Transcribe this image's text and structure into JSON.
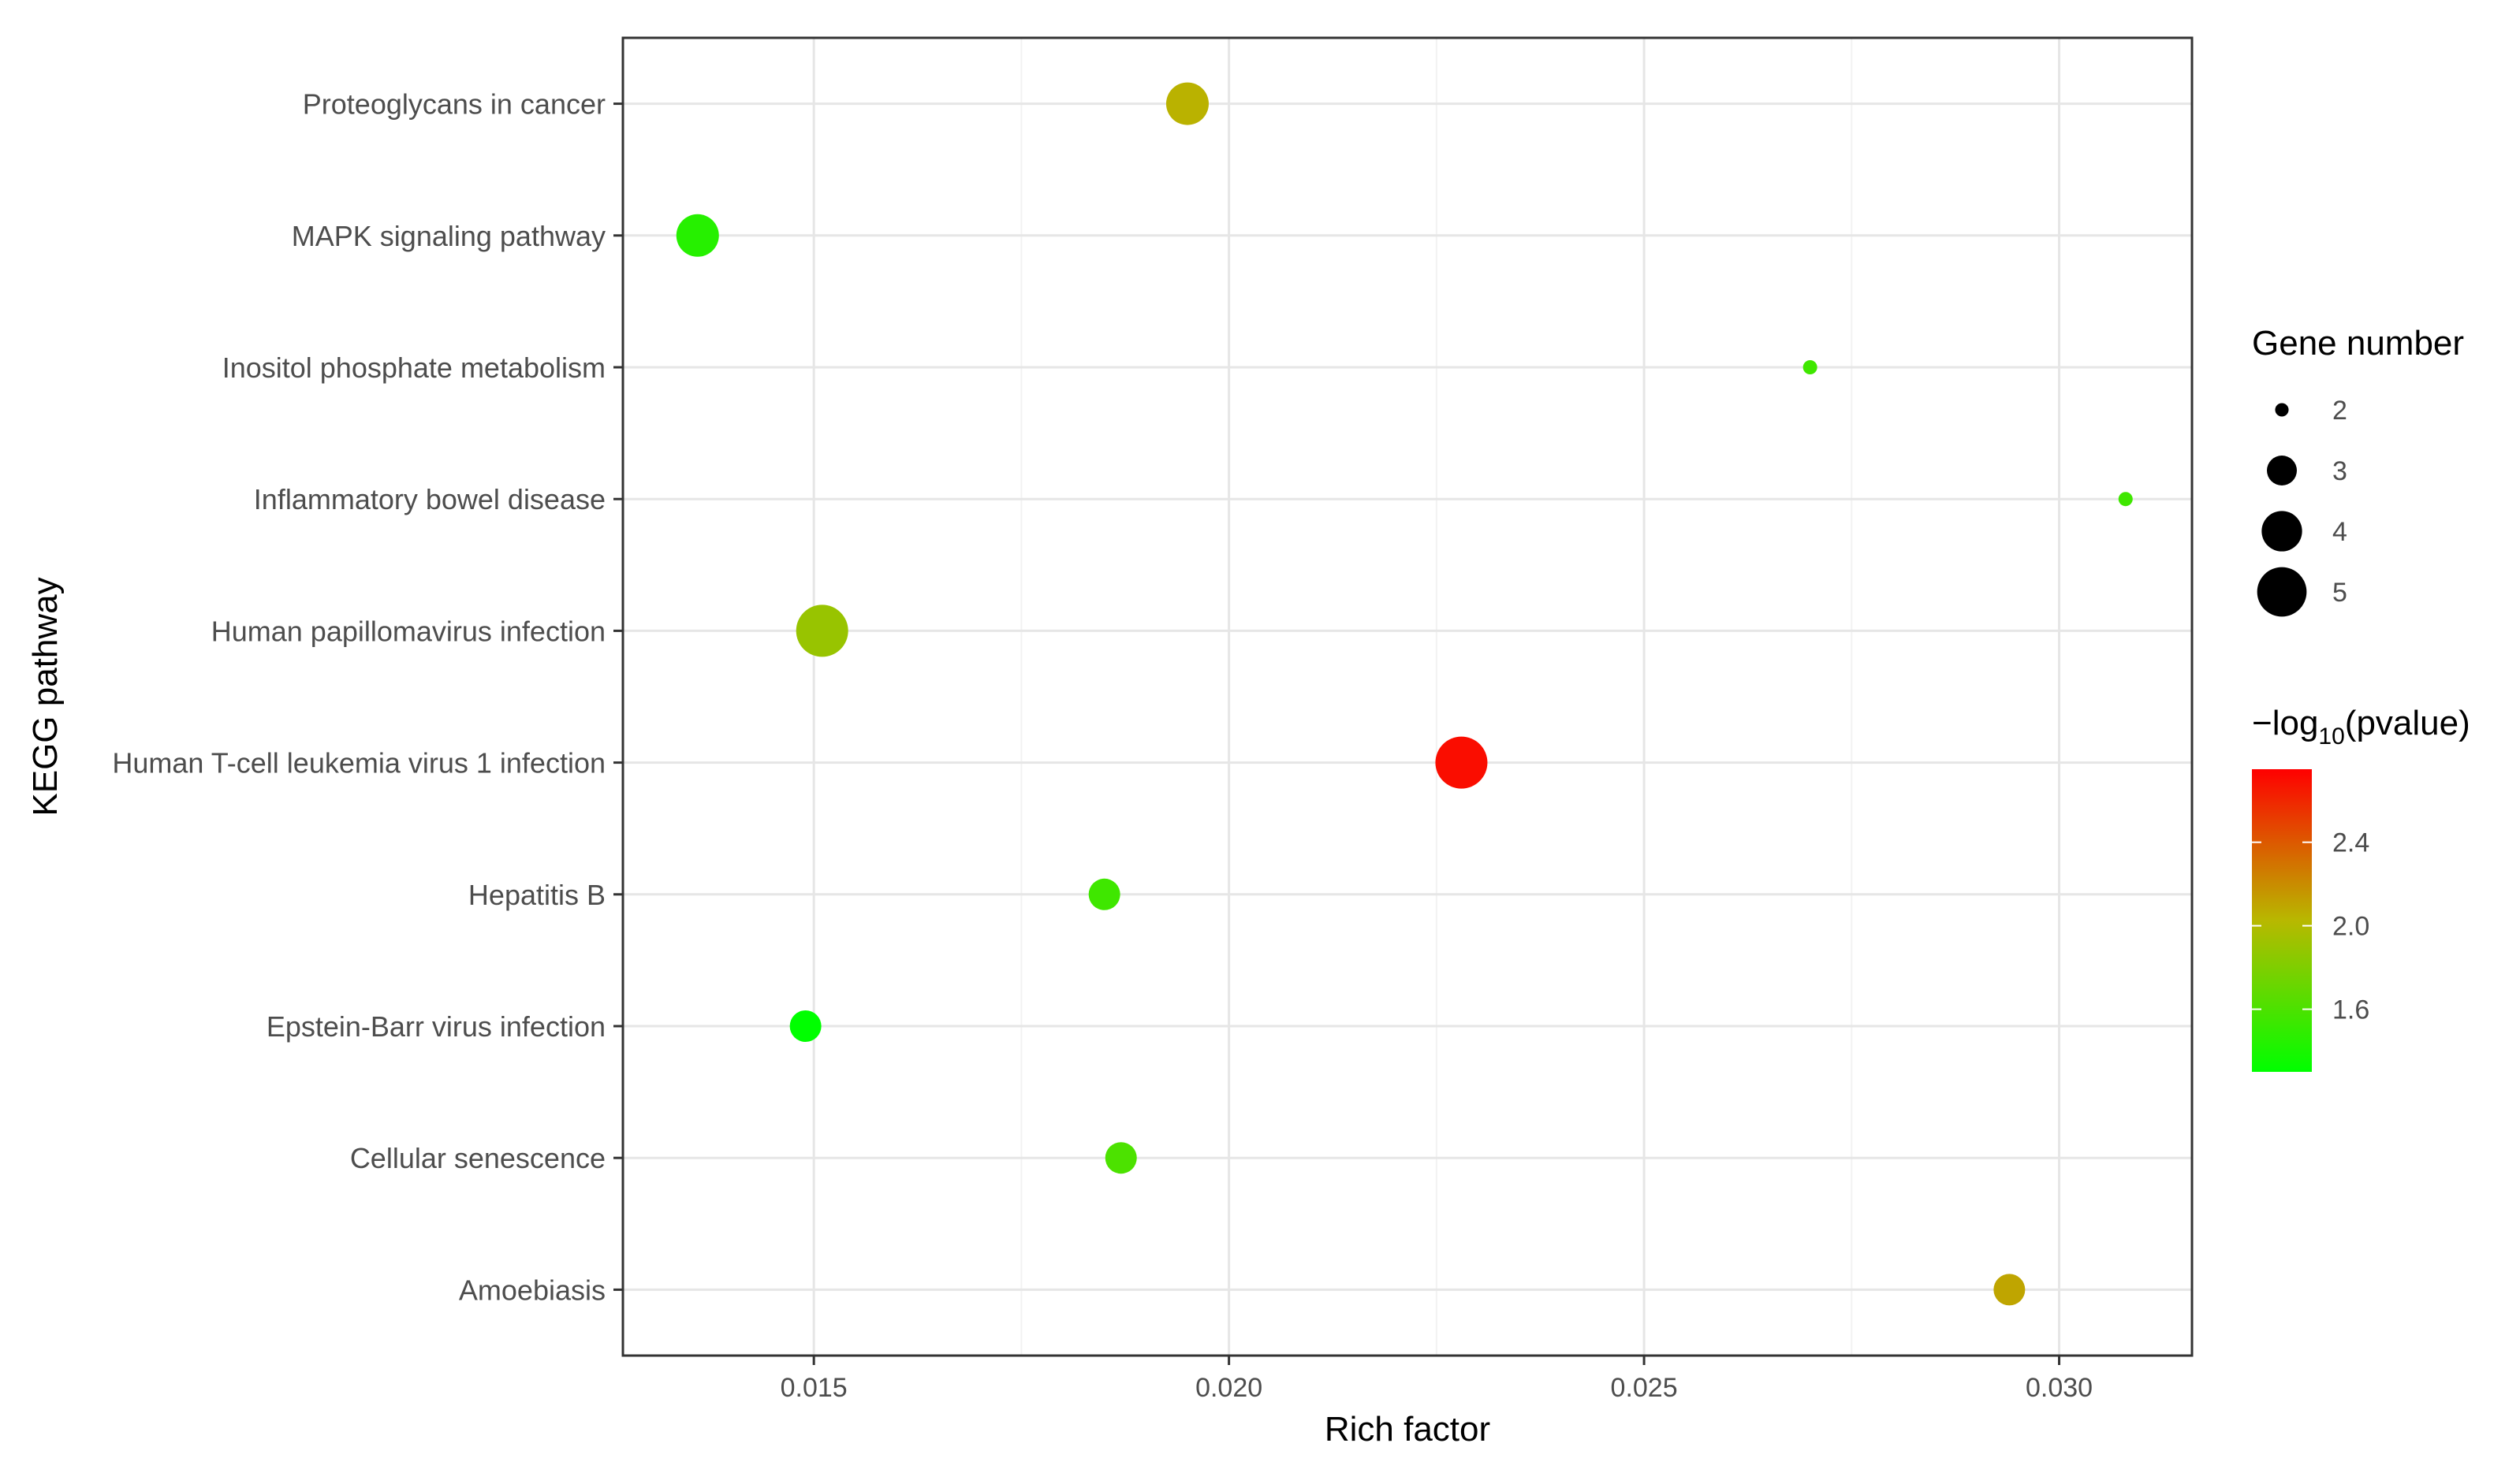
{
  "chart_data": {
    "type": "scatter",
    "xlabel": "Rich factor",
    "ylabel": "KEGG pathway",
    "xlim": [
      0.0127,
      0.0316
    ],
    "x_ticks": [
      0.015,
      0.02,
      0.025,
      0.03
    ],
    "x_tick_labels": [
      "0.015",
      "0.020",
      "0.025",
      "0.030"
    ],
    "grid": true,
    "legend_position": "right",
    "categories": [
      "Proteoglycans in cancer",
      "MAPK signaling pathway",
      "Inositol phosphate metabolism",
      "Inflammatory bowel disease",
      "Human papillomavirus infection",
      "Human T-cell leukemia virus 1 infection",
      "Hepatitis B",
      "Epstein-Barr virus infection",
      "Cellular senescence",
      "Amoebiasis"
    ],
    "points": [
      {
        "pathway": "Proteoglycans in cancer",
        "rich_factor": 0.0195,
        "gene_number": 4,
        "neg_log10_pvalue": 2.05
      },
      {
        "pathway": "MAPK signaling pathway",
        "rich_factor": 0.0136,
        "gene_number": 4,
        "neg_log10_pvalue": 1.45
      },
      {
        "pathway": "Inositol phosphate metabolism",
        "rich_factor": 0.027,
        "gene_number": 2,
        "neg_log10_pvalue": 1.55
      },
      {
        "pathway": "Inflammatory bowel disease",
        "rich_factor": 0.0308,
        "gene_number": 2,
        "neg_log10_pvalue": 1.55
      },
      {
        "pathway": "Human papillomavirus infection",
        "rich_factor": 0.0151,
        "gene_number": 5,
        "neg_log10_pvalue": 1.9
      },
      {
        "pathway": "Human T-cell leukemia virus 1 infection",
        "rich_factor": 0.0228,
        "gene_number": 5,
        "neg_log10_pvalue": 2.7
      },
      {
        "pathway": "Hepatitis B",
        "rich_factor": 0.0185,
        "gene_number": 3,
        "neg_log10_pvalue": 1.55
      },
      {
        "pathway": "Epstein-Barr virus infection",
        "rich_factor": 0.0149,
        "gene_number": 3,
        "neg_log10_pvalue": 1.3
      },
      {
        "pathway": "Cellular senescence",
        "rich_factor": 0.0187,
        "gene_number": 3,
        "neg_log10_pvalue": 1.6
      },
      {
        "pathway": "Amoebiasis",
        "rich_factor": 0.0294,
        "gene_number": 3,
        "neg_log10_pvalue": 2.1
      }
    ],
    "size_legend": {
      "title": "Gene number",
      "values": [
        2,
        3,
        4,
        5
      ],
      "labels": [
        "2",
        "3",
        "4",
        "5"
      ]
    },
    "color_legend": {
      "title_prefix": "−log",
      "title_subscript": "10",
      "title_suffix": "(pvalue)",
      "range": [
        1.3,
        2.75
      ],
      "ticks": [
        1.6,
        2.0,
        2.4
      ],
      "tick_labels": [
        "1.6",
        "2.0",
        "2.4"
      ],
      "low_color": "#00ff00",
      "mid_color": "#b8b800",
      "high_color": "#ff0000"
    }
  }
}
